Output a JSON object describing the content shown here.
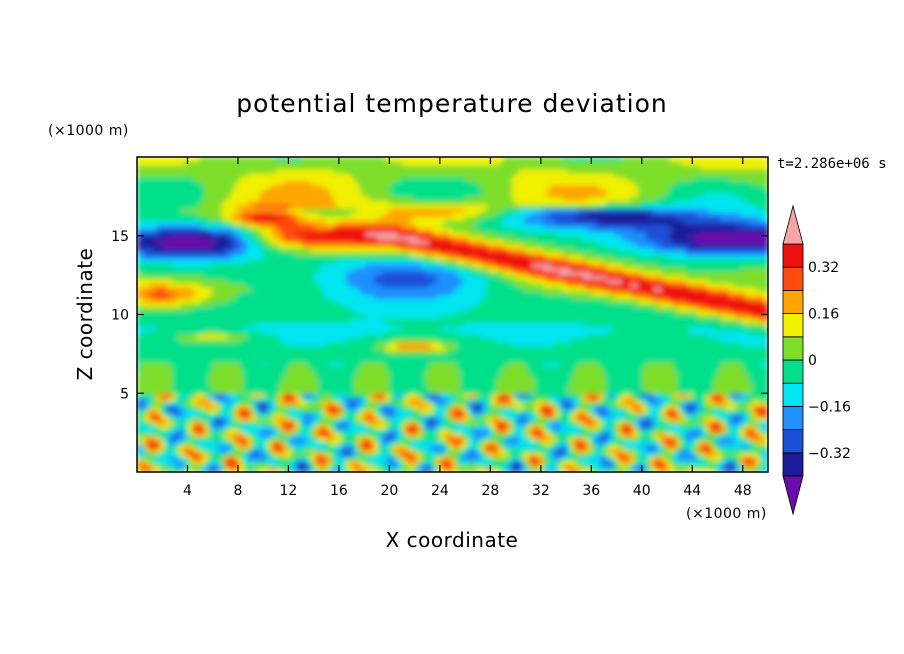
{
  "chart_data": {
    "type": "heatmap",
    "title": "potential temperature deviation",
    "xlabel": "X coordinate",
    "ylabel": "Z coordinate",
    "x_unit": "(×1000 m)",
    "y_unit": "(×1000 m)",
    "time_label": "t=2.286e+06 s",
    "xlim": [
      0,
      50
    ],
    "ylim": [
      0,
      20
    ],
    "x_ticks": [
      4,
      8,
      12,
      16,
      20,
      24,
      28,
      32,
      36,
      40,
      44,
      48
    ],
    "y_ticks": [
      5,
      10,
      15
    ],
    "x_tick_labels": [
      "4",
      "8",
      "12",
      "16",
      "20",
      "24",
      "28",
      "32",
      "36",
      "40",
      "44",
      "48"
    ],
    "y_tick_labels": [
      "5",
      "10",
      "15"
    ],
    "colorbar": {
      "levels": [
        -0.4,
        -0.32,
        -0.24,
        -0.16,
        -0.08,
        0,
        0.08,
        0.16,
        0.24,
        0.32,
        0.4
      ],
      "tick_labels": [
        {
          "value": 0.32,
          "label": "0.32"
        },
        {
          "value": 0.16,
          "label": "0.16"
        },
        {
          "value": 0,
          "label": "0"
        },
        {
          "value": -0.16,
          "label": "−0.16"
        },
        {
          "value": -0.32,
          "label": "−0.32"
        }
      ],
      "colors": [
        "#6a0dad",
        "#1c1c9a",
        "#1a4fd6",
        "#1e90ff",
        "#00e5f0",
        "#00e08a",
        "#7dde2a",
        "#f0f000",
        "#ffa500",
        "#ff4a10",
        "#f01010",
        "#f4a6a6"
      ],
      "extend": "both"
    },
    "features": [
      {
        "name": "upper warm band",
        "x": [
          8,
          50
        ],
        "z": [
          10.5,
          16.5
        ],
        "value": 0.36
      },
      {
        "name": "cold core",
        "x": [
          15,
          28
        ],
        "z": [
          10.5,
          14.5
        ],
        "value": -0.22
      },
      {
        "name": "cold upper layer",
        "x": [
          0,
          50
        ],
        "z": [
          13.5,
          15.5
        ],
        "value": -0.34
      },
      {
        "name": "near-surface turbulence",
        "x": [
          0,
          50
        ],
        "z": [
          0,
          5
        ],
        "value": 0
      }
    ]
  }
}
